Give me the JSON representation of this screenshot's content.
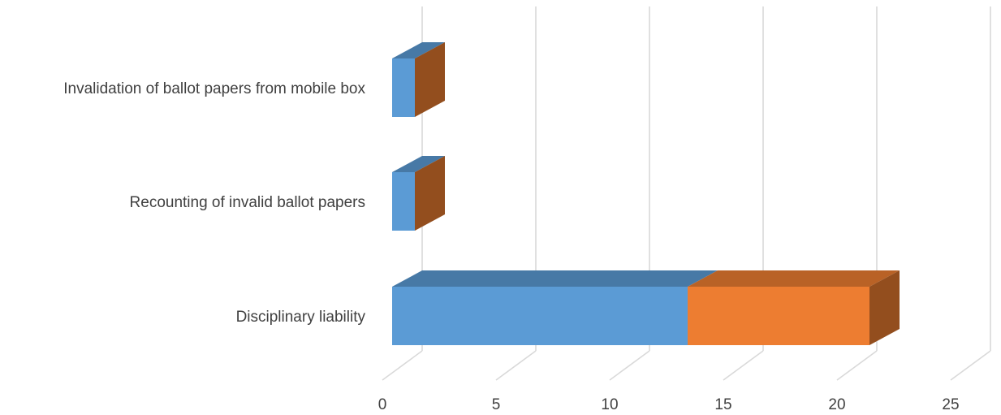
{
  "chart_data": {
    "type": "bar",
    "orientation": "horizontal",
    "stacked": true,
    "style_3d": true,
    "categories": [
      "Invalidation of ballot papers from mobile box",
      "Recounting of invalid ballot papers",
      "Disciplinary liability"
    ],
    "series": [
      {
        "color": "#5B9BD5",
        "values": [
          1,
          1,
          13
        ]
      },
      {
        "color": "#ED7D31",
        "values": [
          0,
          0,
          8
        ]
      }
    ],
    "xlim": [
      0,
      25
    ],
    "x_ticks": [
      0,
      5,
      10,
      15,
      20,
      25
    ],
    "tick_labels": [
      "0",
      "5",
      "10",
      "15",
      "20",
      "25"
    ],
    "grid": true,
    "legend": false,
    "title": "",
    "xlabel": "",
    "ylabel": ""
  }
}
